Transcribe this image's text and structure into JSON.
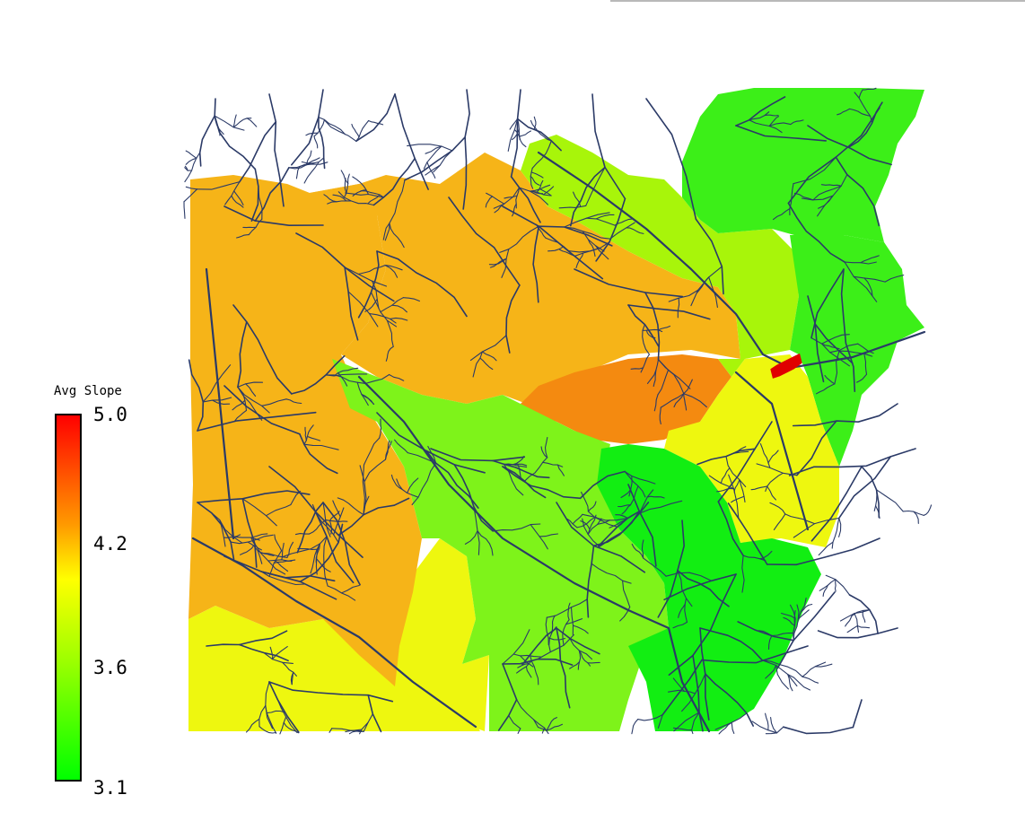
{
  "legend": {
    "title": "Avg Slope",
    "ticks": [
      "5.0",
      "4.2",
      "3.6",
      "3.1"
    ],
    "colors": [
      "#ff0000",
      "#ff9a00",
      "#ffff00",
      "#9aff00",
      "#00ff00"
    ]
  },
  "palette": {
    "stream": "#2b3a67",
    "orange": "#f6b418",
    "dark_orange": "#f48a10",
    "yellow": "#eef70f",
    "yellow_green": "#a8f50a",
    "light_green": "#7ef31a",
    "green": "#3cef18",
    "bright_green": "#12ee12",
    "highlight": "#e00000"
  }
}
